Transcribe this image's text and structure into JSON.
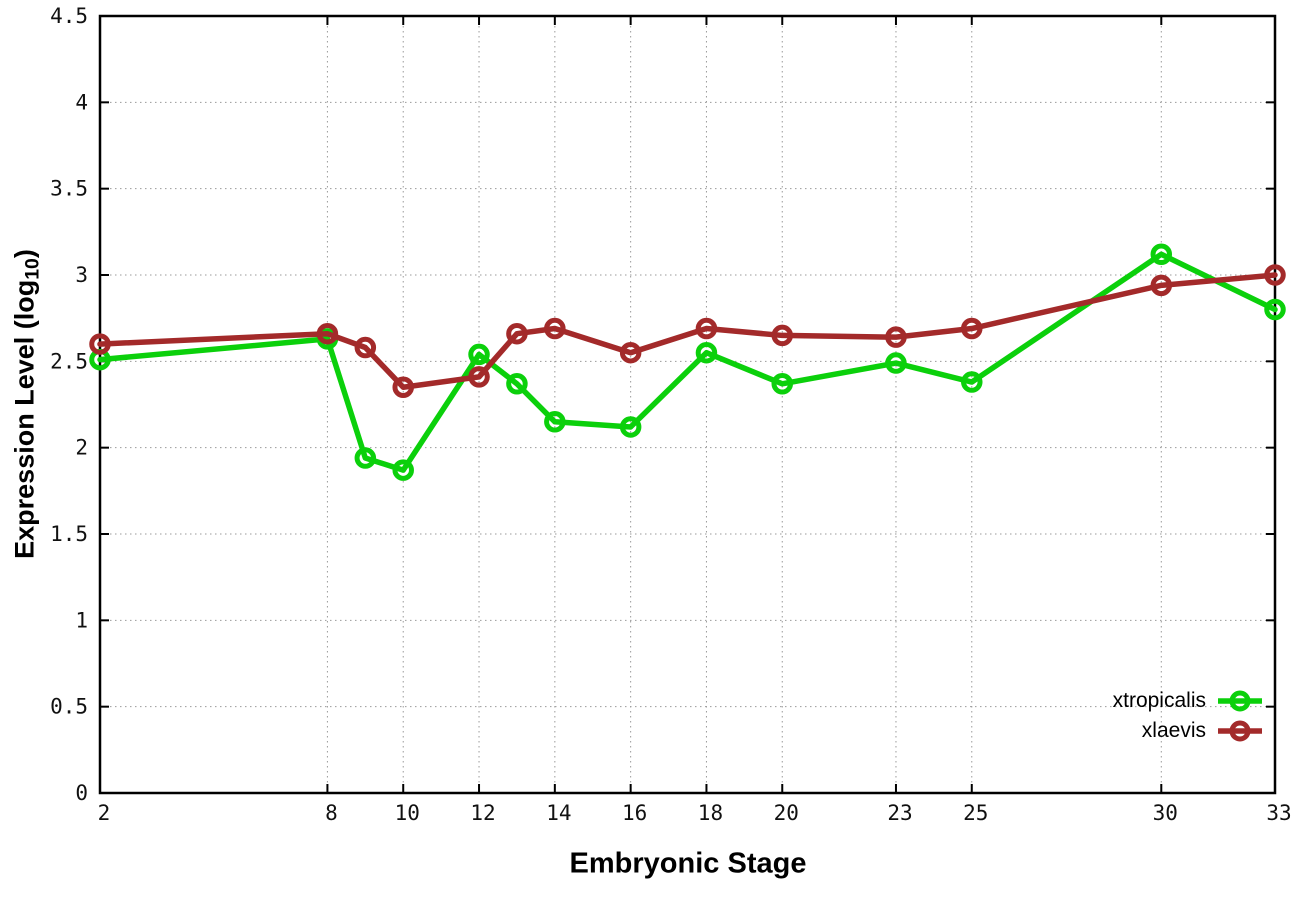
{
  "figure": {
    "background": "#ffffff",
    "xlabel": "Embryonic Stage",
    "ylabel_prefix": "Expression Level (log",
    "ylabel_sub": "10",
    "ylabel_suffix": ")"
  },
  "legend": {
    "items": [
      {
        "label": "xtropicalis",
        "color": "#0bd00b"
      },
      {
        "label": "xlaevis",
        "color": "#a32a2a"
      }
    ]
  },
  "chart_data": {
    "type": "line",
    "title": "",
    "xlabel": "Embryonic Stage",
    "ylabel": "Expression Level (log10)",
    "xlim": [
      2,
      33
    ],
    "ylim": [
      0,
      4.5
    ],
    "x_ticks": [
      2,
      8,
      10,
      12,
      14,
      16,
      18,
      20,
      23,
      25,
      30,
      33
    ],
    "y_ticks": [
      0,
      0.5,
      1,
      1.5,
      2,
      2.5,
      3,
      3.5,
      4,
      4.5
    ],
    "grid": true,
    "legend_position": "bottom-right",
    "marker": "open-circle",
    "x": [
      2,
      8,
      9,
      10,
      12,
      13,
      14,
      16,
      18,
      20,
      23,
      25,
      30,
      33
    ],
    "series": [
      {
        "name": "xtropicalis",
        "color": "#0bd00b",
        "values": [
          2.51,
          2.63,
          1.94,
          1.87,
          2.54,
          2.37,
          2.15,
          2.12,
          2.55,
          2.37,
          2.49,
          2.38,
          3.12,
          2.8
        ]
      },
      {
        "name": "xlaevis",
        "color": "#a32a2a",
        "values": [
          2.6,
          2.66,
          2.58,
          2.35,
          2.41,
          2.66,
          2.69,
          2.55,
          2.69,
          2.65,
          2.64,
          2.69,
          2.94,
          3.0
        ]
      }
    ]
  }
}
